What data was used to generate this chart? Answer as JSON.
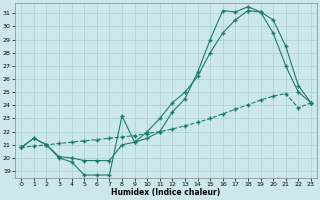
{
  "xlabel": "Humidex (Indice chaleur)",
  "ylabel": "",
  "bg_color": "#cce8ec",
  "line_color": "#1a7a6e",
  "grid_color": "#aacdd4",
  "xlim": [
    -0.5,
    23.5
  ],
  "ylim": [
    18.5,
    31.8
  ],
  "xticks": [
    0,
    1,
    2,
    3,
    4,
    5,
    6,
    7,
    8,
    9,
    10,
    11,
    12,
    13,
    14,
    15,
    16,
    17,
    18,
    19,
    20,
    21,
    22,
    23
  ],
  "yticks": [
    19,
    20,
    21,
    22,
    23,
    24,
    25,
    26,
    27,
    28,
    29,
    30,
    31
  ],
  "line1_x": [
    0,
    1,
    2,
    3,
    4,
    5,
    6,
    7,
    8,
    9,
    10,
    11,
    12,
    13,
    14,
    15,
    16,
    17,
    18,
    19,
    20,
    21,
    22,
    23
  ],
  "line1_y": [
    20.8,
    21.5,
    21.0,
    20.0,
    19.7,
    18.7,
    18.7,
    18.7,
    23.2,
    21.2,
    21.5,
    22.0,
    23.5,
    24.5,
    26.5,
    29.0,
    31.2,
    31.1,
    31.5,
    31.1,
    29.5,
    27.0,
    25.0,
    24.2
  ],
  "line2_x": [
    0,
    1,
    2,
    3,
    4,
    5,
    6,
    7,
    8,
    9,
    10,
    11,
    12,
    13,
    14,
    15,
    16,
    17,
    18,
    19,
    20,
    21,
    22,
    23
  ],
  "line2_y": [
    20.8,
    21.5,
    21.0,
    20.1,
    20.0,
    19.8,
    19.8,
    19.8,
    21.0,
    21.2,
    22.0,
    23.0,
    24.2,
    25.0,
    26.2,
    28.0,
    29.5,
    30.5,
    31.2,
    31.1,
    30.5,
    28.5,
    25.5,
    24.2
  ],
  "line3_x": [
    0,
    1,
    2,
    3,
    4,
    5,
    6,
    7,
    8,
    9,
    10,
    11,
    12,
    13,
    14,
    15,
    16,
    17,
    18,
    19,
    20,
    21,
    22,
    23
  ],
  "line3_y": [
    20.8,
    20.9,
    21.0,
    21.1,
    21.2,
    21.3,
    21.4,
    21.5,
    21.6,
    21.7,
    21.85,
    22.0,
    22.2,
    22.45,
    22.7,
    23.0,
    23.35,
    23.7,
    24.05,
    24.4,
    24.7,
    24.9,
    23.8,
    24.2
  ],
  "marker": "+"
}
